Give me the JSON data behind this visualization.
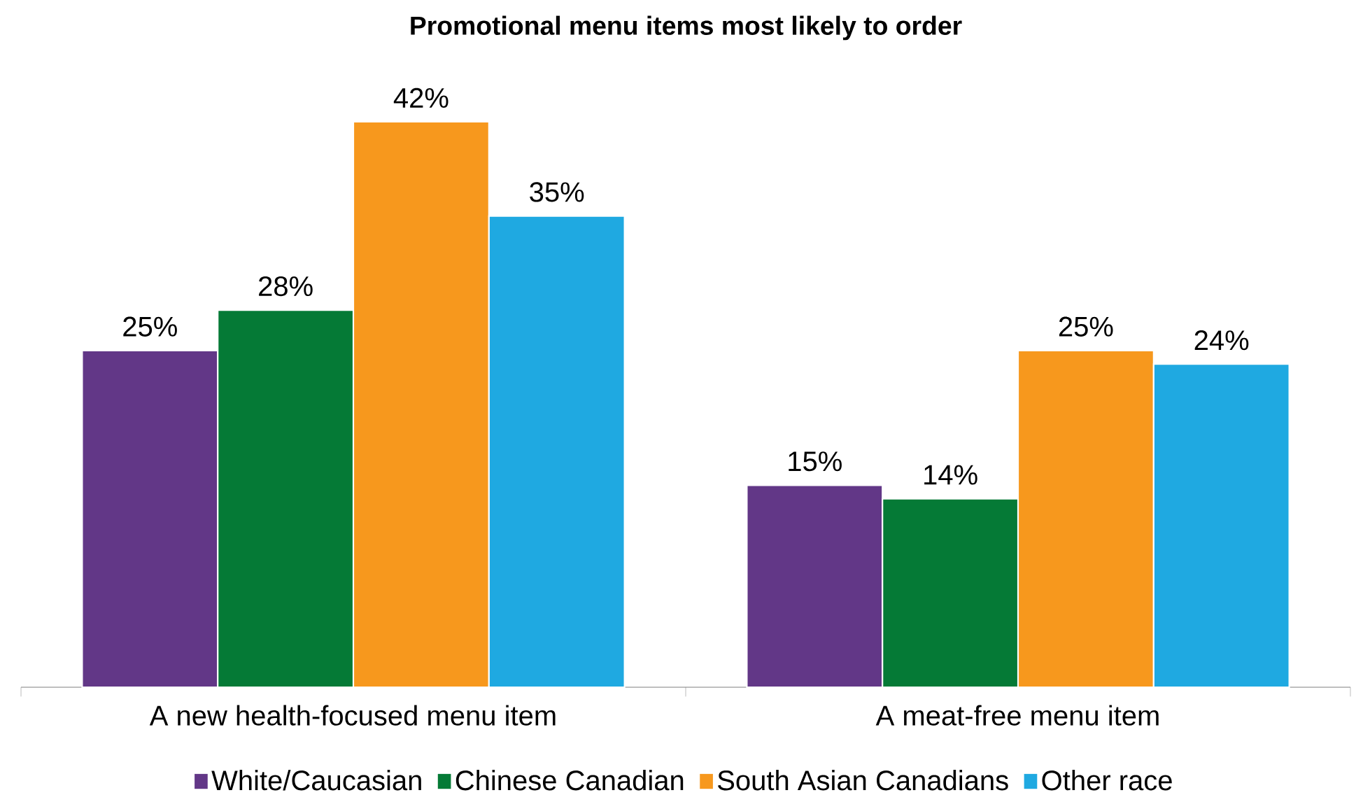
{
  "chart_data": {
    "type": "bar",
    "title": "Promotional menu items most likely to order",
    "categories": [
      "A new health-focused menu item",
      "A meat-free menu item"
    ],
    "series": [
      {
        "name": "White/Caucasian",
        "color": "#623787",
        "values": [
          25,
          15
        ],
        "value_labels": [
          "25%",
          "15%"
        ]
      },
      {
        "name": "Chinese Canadian",
        "color": "#057a36",
        "values": [
          28,
          14
        ],
        "value_labels": [
          "28%",
          "14%"
        ]
      },
      {
        "name": "South Asian Canadians",
        "color": "#f7981d",
        "values": [
          42,
          25
        ],
        "value_labels": [
          "42%",
          "25%"
        ]
      },
      {
        "name": "Other race",
        "color": "#1fa9e1",
        "values": [
          35,
          24
        ],
        "value_labels": [
          "35%",
          "24%"
        ]
      }
    ],
    "legend": "bottom"
  }
}
